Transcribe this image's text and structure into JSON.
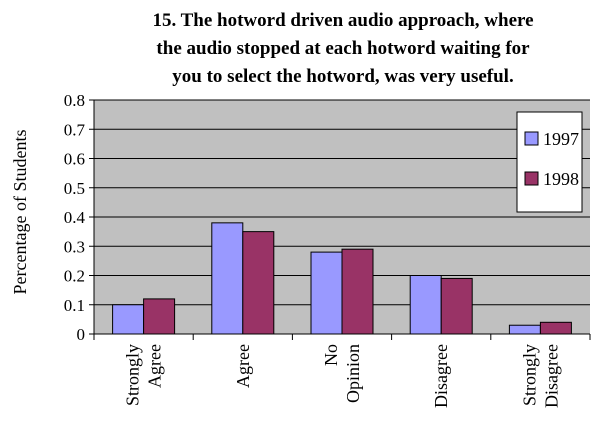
{
  "chart_data": {
    "type": "bar",
    "title": [
      "15. The hotword driven audio approach, where",
      "the audio stopped at each hotword waiting for",
      "you to select the hotword, was very useful."
    ],
    "ylabel": "Percentage of Students",
    "xlabel": "",
    "ylim": [
      0,
      0.8
    ],
    "yticks": [
      "0",
      "0.1",
      "0.2",
      "0.3",
      "0.4",
      "0.5",
      "0.6",
      "0.7",
      "0.8"
    ],
    "categories": [
      [
        "Strongly",
        "Agree"
      ],
      [
        "Agree"
      ],
      [
        "No",
        "Opinion"
      ],
      [
        "Disagree"
      ],
      [
        "Strongly",
        "Disagree"
      ]
    ],
    "series": [
      {
        "name": "1997",
        "color": "#9999ff",
        "values": [
          0.1,
          0.38,
          0.28,
          0.2,
          0.03
        ]
      },
      {
        "name": "1998",
        "color": "#993366",
        "values": [
          0.12,
          0.35,
          0.29,
          0.19,
          0.04
        ]
      }
    ],
    "grid": true,
    "plot_background": "#c0c0c0",
    "legend_position": "top-right"
  }
}
